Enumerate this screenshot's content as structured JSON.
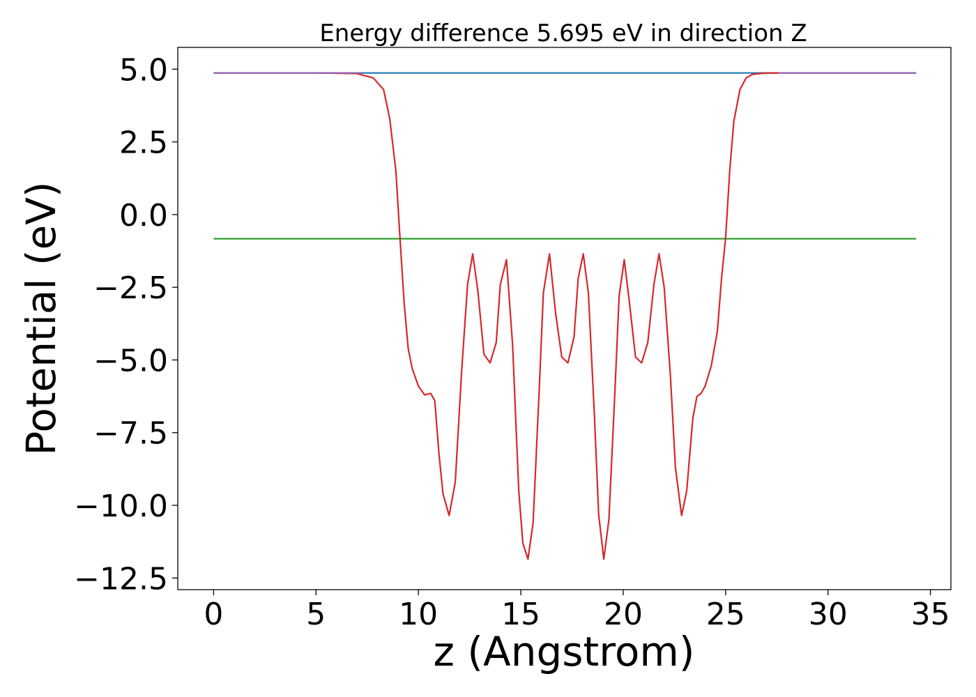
{
  "chart_data": {
    "type": "line",
    "title": "Energy difference 5.695 eV in direction Z",
    "xlabel": "z (Angstrom)",
    "ylabel": "Potential (eV)",
    "xlim": [
      -1.75,
      36.0
    ],
    "ylim": [
      -12.9,
      5.75
    ],
    "xticks": [
      0,
      5,
      10,
      15,
      20,
      25,
      30,
      35
    ],
    "xtick_labels": [
      "0",
      "5",
      "10",
      "15",
      "20",
      "25",
      "30",
      "35"
    ],
    "yticks": [
      5.0,
      2.5,
      0.0,
      -2.5,
      -5.0,
      -7.5,
      -10.0,
      -12.5
    ],
    "ytick_labels": [
      "5.0",
      "2.5",
      "0.0",
      "−2.5",
      "−5.0",
      "−7.5",
      "−10.0",
      "−12.5"
    ],
    "grid": false,
    "legend": "none",
    "series": [
      {
        "color": "#1f77b4",
        "x": [
          0,
          34.3
        ],
        "y": [
          4.87,
          4.87
        ]
      },
      {
        "color": "#2ca02c",
        "x": [
          0,
          34.3
        ],
        "y": [
          -0.83,
          -0.83
        ]
      },
      {
        "color": "#d62728",
        "x": [
          0,
          5,
          7,
          7.8,
          8.3,
          8.6,
          8.9,
          9.1,
          9.3,
          9.5,
          9.7,
          10.0,
          10.3,
          10.6,
          10.8,
          11.0,
          11.2,
          11.5,
          11.8,
          12.1,
          12.4,
          12.65,
          12.9,
          13.2,
          13.5,
          13.8,
          14.0,
          14.3,
          14.6,
          14.9,
          15.1,
          15.35,
          15.6,
          15.9,
          16.1,
          16.4,
          16.7,
          17.0,
          17.3,
          17.6,
          17.8,
          18.05,
          18.3,
          18.6,
          18.8,
          19.05,
          19.3,
          19.6,
          19.8,
          20.05,
          20.3,
          20.6,
          20.9,
          21.2,
          21.5,
          21.75,
          22.0,
          22.3,
          22.55,
          22.85,
          23.1,
          23.4,
          23.6,
          23.8,
          24.0,
          24.3,
          24.6,
          24.8,
          25.0,
          25.2,
          25.4,
          25.7,
          26.0,
          26.3,
          26.8,
          27.5,
          30,
          34.3
        ],
        "y": [
          4.87,
          4.87,
          4.85,
          4.7,
          4.3,
          3.3,
          1.5,
          -0.8,
          -3.0,
          -4.6,
          -5.3,
          -5.9,
          -6.2,
          -6.15,
          -6.4,
          -8.2,
          -9.6,
          -10.35,
          -9.2,
          -5.5,
          -2.4,
          -1.35,
          -2.6,
          -4.8,
          -5.1,
          -4.4,
          -2.4,
          -1.55,
          -4.5,
          -9.5,
          -11.3,
          -11.85,
          -10.6,
          -6.0,
          -2.7,
          -1.35,
          -3.4,
          -4.9,
          -5.1,
          -4.2,
          -2.2,
          -1.35,
          -2.7,
          -7.0,
          -10.3,
          -11.85,
          -10.5,
          -6.0,
          -2.8,
          -1.55,
          -3.0,
          -4.9,
          -5.1,
          -4.4,
          -2.4,
          -1.35,
          -2.5,
          -5.5,
          -8.7,
          -10.35,
          -9.5,
          -7.0,
          -6.25,
          -6.15,
          -5.9,
          -5.2,
          -4.0,
          -2.2,
          -0.8,
          1.5,
          3.2,
          4.3,
          4.7,
          4.82,
          4.86,
          4.87,
          4.87,
          4.87
        ]
      },
      {
        "color": "#9467bd",
        "x": [
          0,
          7.2
        ],
        "y": [
          4.87,
          4.87
        ]
      },
      {
        "color": "#9467bd",
        "x": [
          27.6,
          34.3
        ],
        "y": [
          4.87,
          4.87
        ]
      }
    ]
  }
}
